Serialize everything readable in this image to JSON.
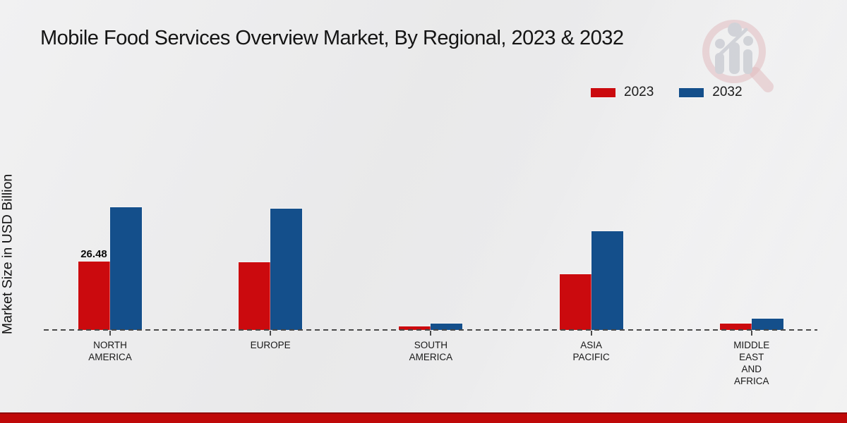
{
  "title": "Mobile Food Services Overview Market, By Regional, 2023 & 2032",
  "y_axis_label": "Market Size in USD Billion",
  "legend": {
    "position": "top-right",
    "items": [
      {
        "label": "2023",
        "color": "#cb0a0e"
      },
      {
        "label": "2032",
        "color": "#144f8b"
      }
    ]
  },
  "watermark": {
    "icon": "magnifier-bar-chart-logo",
    "ring_color": "#dfb3b6",
    "bars_color": "#ccced4"
  },
  "footer": {
    "band_color": "#bf0808",
    "band_edge_color": "#8f0a0a"
  },
  "chart_data": {
    "type": "bar",
    "title": "Mobile Food Services Overview Market, By Regional, 2023 & 2032",
    "xlabel": "",
    "ylabel": "Market Size in USD Billion",
    "categories": [
      "NORTH AMERICA",
      "EUROPE",
      "SOUTH AMERICA",
      "ASIA PACIFIC",
      "MIDDLE EAST AND AFRICA"
    ],
    "category_lines": [
      [
        "NORTH",
        "AMERICA"
      ],
      [
        "EUROPE"
      ],
      [
        "SOUTH",
        "AMERICA"
      ],
      [
        "ASIA",
        "PACIFIC"
      ],
      [
        "MIDDLE",
        "EAST",
        "AND",
        "AFRICA"
      ]
    ],
    "series": [
      {
        "name": "2023",
        "color": "#cb0a0e",
        "values": [
          26.48,
          26.1,
          1.4,
          21.5,
          2.4
        ]
      },
      {
        "name": "2032",
        "color": "#144f8b",
        "values": [
          47.3,
          46.9,
          2.4,
          38.0,
          4.3
        ]
      }
    ],
    "data_labels": [
      {
        "series_index": 0,
        "category_index": 0,
        "text": "26.48"
      }
    ],
    "ylim": [
      0,
      55
    ],
    "grid": false,
    "baseline_style": "dashed",
    "legend_position": "top-right"
  }
}
